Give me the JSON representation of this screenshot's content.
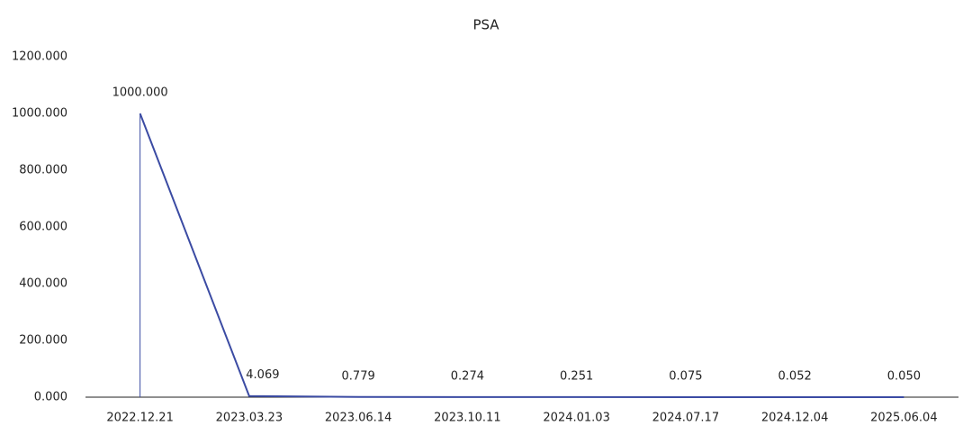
{
  "chart_data": {
    "type": "line",
    "title": "PSA",
    "categories": [
      "2022.12.21",
      "2023.03.23",
      "2023.06.14",
      "2023.10.11",
      "2024.01.03",
      "2024.07.17",
      "2024.12.04",
      "2025.06.04"
    ],
    "series": [
      {
        "name": "PSA",
        "color": "#3b4ba3",
        "values": [
          1000,
          4.069,
          0.779,
          0.274,
          0.251,
          0.075,
          0.052,
          0.05
        ],
        "value_labels": [
          "1000.000",
          "4.069",
          "0.779",
          "0.274",
          "0.251",
          "0.075",
          "0.052",
          "0.050"
        ]
      }
    ],
    "ylim": [
      0,
      1200
    ],
    "yticks": [
      {
        "value": 0,
        "label": "0.000"
      },
      {
        "value": 200,
        "label": "200.000"
      },
      {
        "value": 400,
        "label": "400.000"
      },
      {
        "value": 600,
        "label": "600.000"
      },
      {
        "value": 800,
        "label": "800.000"
      },
      {
        "value": 1000,
        "label": "1000.000"
      },
      {
        "value": 1200,
        "label": "1200.000"
      }
    ],
    "grid": false
  }
}
